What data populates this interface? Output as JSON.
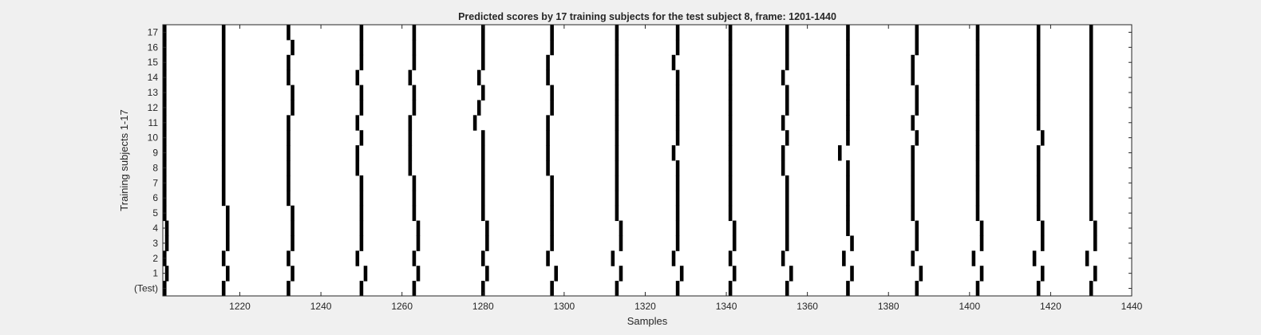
{
  "chart_data": {
    "type": "heatmap",
    "title": "Predicted scores by 17 training subjects for the test subject 8, frame: 1201-1440",
    "xlabel": "Samples",
    "ylabel": "Training subjects 1-17",
    "xlim": [
      1201,
      1440
    ],
    "xticks": [
      1220,
      1240,
      1260,
      1280,
      1300,
      1320,
      1340,
      1360,
      1380,
      1400,
      1420,
      1440
    ],
    "rows": [
      "(Test)",
      "1",
      "2",
      "3",
      "4",
      "5",
      "6",
      "7",
      "8",
      "9",
      "10",
      "11",
      "12",
      "13",
      "14",
      "15",
      "16",
      "17"
    ],
    "colors": {
      "background": "#f0f0f0",
      "plot": "#ffffff",
      "mark": "#000000",
      "axis": "#262626"
    },
    "grid": false,
    "legend": "none",
    "note_on_values": "Each row lists the sample positions (x in samples) of the black predicted-event marks; each mark spans one sample.",
    "events": [
      [
        1201,
        1216,
        1232,
        1250,
        1263,
        1280,
        1297,
        1313,
        1328,
        1341,
        1355,
        1370,
        1387,
        1402,
        1417,
        1430
      ],
      [
        1202,
        1217,
        1233,
        1251,
        1264,
        1281,
        1298,
        1314,
        1329,
        1342,
        1356,
        1371,
        1388,
        1403,
        1418,
        1431
      ],
      [
        1201,
        1216,
        1232,
        1249,
        1263,
        1280,
        1296,
        1312,
        1327,
        1341,
        1354,
        1369,
        1386,
        1401,
        1416,
        1429
      ],
      [
        1202,
        1217,
        1233,
        1250,
        1264,
        1281,
        1297,
        1314,
        1328,
        1342,
        1355,
        1371,
        1387,
        1403,
        1418,
        1431
      ],
      [
        1202,
        1217,
        1233,
        1250,
        1264,
        1281,
        1297,
        1314,
        1328,
        1342,
        1355,
        1370,
        1387,
        1403,
        1418,
        1431
      ],
      [
        1201,
        1217,
        1233,
        1250,
        1263,
        1280,
        1297,
        1313,
        1328,
        1341,
        1355,
        1370,
        1386,
        1402,
        1417,
        1430
      ],
      [
        1201,
        1216,
        1232,
        1250,
        1263,
        1280,
        1297,
        1313,
        1328,
        1341,
        1355,
        1370,
        1386,
        1402,
        1417,
        1430
      ],
      [
        1201,
        1216,
        1232,
        1250,
        1263,
        1280,
        1297,
        1313,
        1328,
        1341,
        1355,
        1370,
        1386,
        1402,
        1417,
        1430
      ],
      [
        1201,
        1216,
        1232,
        1249,
        1262,
        1280,
        1296,
        1313,
        1328,
        1341,
        1354,
        1370,
        1386,
        1402,
        1417,
        1430
      ],
      [
        1201,
        1216,
        1232,
        1249,
        1262,
        1280,
        1296,
        1313,
        1327,
        1341,
        1354,
        1368,
        1386,
        1402,
        1417,
        1430
      ],
      [
        1201,
        1216,
        1232,
        1250,
        1262,
        1280,
        1296,
        1313,
        1328,
        1341,
        1355,
        1370,
        1387,
        1402,
        1418,
        1430
      ],
      [
        1200,
        1216,
        1232,
        1249,
        1262,
        1278,
        1296,
        1313,
        1328,
        1341,
        1354,
        1370,
        1386,
        1402,
        1417,
        1430
      ],
      [
        1201,
        1216,
        1233,
        1250,
        1263,
        1279,
        1297,
        1313,
        1328,
        1341,
        1355,
        1370,
        1387,
        1402,
        1417,
        1430
      ],
      [
        1201,
        1216,
        1233,
        1250,
        1263,
        1280,
        1297,
        1313,
        1328,
        1341,
        1355,
        1370,
        1387,
        1402,
        1417,
        1430
      ],
      [
        1201,
        1216,
        1232,
        1249,
        1262,
        1279,
        1296,
        1313,
        1328,
        1341,
        1354,
        1370,
        1386,
        1402,
        1417,
        1430
      ],
      [
        1200,
        1216,
        1232,
        1250,
        1263,
        1280,
        1296,
        1313,
        1327,
        1341,
        1355,
        1370,
        1386,
        1402,
        1417,
        1430
      ],
      [
        1201,
        1216,
        1233,
        1250,
        1263,
        1280,
        1297,
        1313,
        1328,
        1341,
        1355,
        1370,
        1387,
        1402,
        1417,
        1430
      ],
      [
        1201,
        1216,
        1232,
        1250,
        1263,
        1280,
        1297,
        1313,
        1328,
        1341,
        1355,
        1370,
        1387,
        1402,
        1417,
        1430
      ]
    ]
  }
}
